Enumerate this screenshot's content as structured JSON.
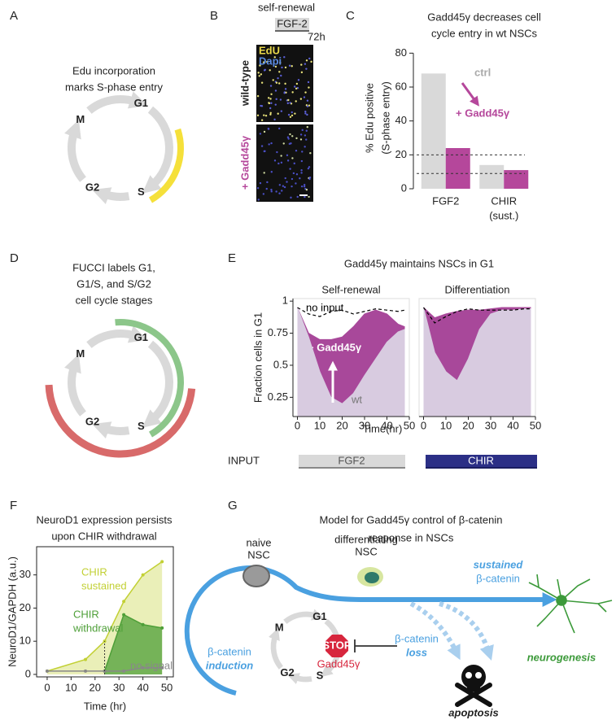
{
  "panels": {
    "A": {
      "letter": "A",
      "caption": [
        "Edu incorporation",
        "marks S-phase entry"
      ],
      "phases": [
        "G1",
        "S",
        "G2",
        "M"
      ]
    },
    "B": {
      "letter": "B",
      "condition": "self-renewal",
      "factor": "FGF-2",
      "duration": "72h",
      "rows": [
        "wild-type",
        "+ Gadd45γ"
      ],
      "stains": [
        "EdU",
        "Dapi"
      ]
    },
    "C": {
      "letter": "C"
    },
    "D": {
      "letter": "D",
      "caption": [
        "FUCCI labels G1,",
        "G1/S, and S/G2",
        "cell cycle stages"
      ],
      "phases": [
        "G1",
        "S",
        "G2",
        "M"
      ]
    },
    "E": {
      "letter": "E",
      "title": "Gadd45γ maintains NSCs in G1",
      "input_label": "INPUT",
      "inputs": [
        "FGF2",
        "CHIR"
      ]
    },
    "F": {
      "letter": "F"
    },
    "G": {
      "letter": "G",
      "title": [
        "Model for Gadd45γ control of β-catenin",
        "response in NSCs"
      ],
      "naive": [
        "naive",
        "NSC"
      ],
      "differentiating": [
        "differentiating",
        "NSC"
      ],
      "sustained": [
        "sustained",
        "β-catenin"
      ],
      "induction": [
        "β-catenin",
        "induction"
      ],
      "loss": [
        "β-catenin",
        "loss"
      ],
      "stop": "STOP",
      "gadd": "Gadd45γ",
      "outcome": "neurogenesis",
      "apoptosis": "apoptosis",
      "phases": [
        "G1",
        "S",
        "G2",
        "M"
      ]
    }
  },
  "chart_data": [
    {
      "type": "bar",
      "title": [
        "Gadd45γ decreases cell",
        "cycle entry in wt NSCs"
      ],
      "categories": [
        [
          "FGF2"
        ],
        [
          "CHIR",
          "(sust.)"
        ]
      ],
      "y_label": [
        "% Edu positive",
        "(S-phase entry)"
      ],
      "ylim": [
        0,
        84
      ],
      "yticks": [
        0,
        20,
        40,
        60,
        80
      ],
      "reference_lines": [
        20,
        9
      ],
      "series": [
        {
          "name": "ctrl",
          "color": "#d9d9d9",
          "values": [
            68,
            14
          ]
        },
        {
          "name": "+ Gadd45γ",
          "color": "#b5479b",
          "values": [
            24,
            11
          ]
        }
      ]
    },
    {
      "type": "area",
      "title": "Self-renewal",
      "x": [
        0,
        5,
        10,
        15,
        20,
        25,
        30,
        35,
        40,
        45,
        48
      ],
      "xlim": [
        -2,
        50
      ],
      "xticks": [
        0,
        10,
        20,
        30,
        40,
        50
      ],
      "ylim": [
        0.1,
        1.02
      ],
      "yticks": [
        0.25,
        0.5,
        0.75,
        1
      ],
      "y_label": "Fraction cells in G1",
      "x_label": "Time(hr)",
      "series": [
        {
          "name": "+ Gadd45γ",
          "color": "#a8489a",
          "fill": true,
          "values": [
            0.95,
            0.75,
            0.7,
            0.7,
            0.72,
            0.8,
            0.9,
            0.93,
            0.9,
            0.82,
            0.8
          ]
        },
        {
          "name": "wt",
          "color": "#d8cbe0",
          "fill": true,
          "values": [
            0.95,
            0.72,
            0.45,
            0.25,
            0.2,
            0.28,
            0.42,
            0.55,
            0.68,
            0.76,
            0.78
          ]
        },
        {
          "name": "no input",
          "color": "#000000",
          "dashed": true,
          "values": [
            0.95,
            0.9,
            0.88,
            0.92,
            0.93,
            0.9,
            0.92,
            0.94,
            0.93,
            0.92,
            0.93
          ]
        }
      ]
    },
    {
      "type": "area",
      "title": "Differentiation",
      "x": [
        0,
        5,
        10,
        15,
        20,
        25,
        30,
        35,
        40,
        45,
        48
      ],
      "xlim": [
        -2,
        50
      ],
      "xticks": [
        0,
        10,
        20,
        30,
        40,
        50
      ],
      "ylim": [
        0.1,
        1.02
      ],
      "series": [
        {
          "color": "#a8489a",
          "fill": true,
          "values": [
            0.95,
            0.87,
            0.9,
            0.92,
            0.93,
            0.93,
            0.94,
            0.95,
            0.95,
            0.95,
            0.95
          ]
        },
        {
          "color": "#d8cbe0",
          "fill": true,
          "values": [
            0.95,
            0.6,
            0.45,
            0.38,
            0.55,
            0.78,
            0.9,
            0.93,
            0.93,
            0.94,
            0.94
          ]
        },
        {
          "color": "#000000",
          "dashed": true,
          "values": [
            0.95,
            0.83,
            0.88,
            0.92,
            0.94,
            0.93,
            0.93,
            0.93,
            0.93,
            0.94,
            0.94
          ]
        }
      ]
    },
    {
      "type": "line",
      "title": [
        "NeuroD1 expression persists",
        "upon CHIR withdrawal"
      ],
      "x": [
        0,
        16,
        24,
        32,
        40,
        48
      ],
      "xlim": [
        -4.4,
        52.7
      ],
      "xticks": [
        0,
        10,
        20,
        30,
        40,
        50
      ],
      "ylim": [
        -0.75,
        38.5
      ],
      "yticks": [
        0,
        10,
        20,
        30
      ],
      "x_label": "Time (hr)",
      "y_label": "NeuroD1/GAPDH (a.u.)",
      "series": [
        {
          "name": [
            "CHIR",
            "sustained"
          ],
          "color": "#c2d034",
          "fill": true,
          "fill_opacity": 0.35,
          "values": [
            1,
            4.5,
            10,
            22,
            30,
            34
          ]
        },
        {
          "name": [
            "CHIR",
            "withdrawal"
          ],
          "color": "#4e9f38",
          "fill": true,
          "fill_opacity": 0.75,
          "values": [
            null,
            null,
            1,
            18,
            15,
            14
          ]
        },
        {
          "name": [
            "no signal"
          ],
          "color": "#888888",
          "values": [
            1,
            1,
            1,
            1,
            2,
            2
          ]
        }
      ]
    }
  ]
}
